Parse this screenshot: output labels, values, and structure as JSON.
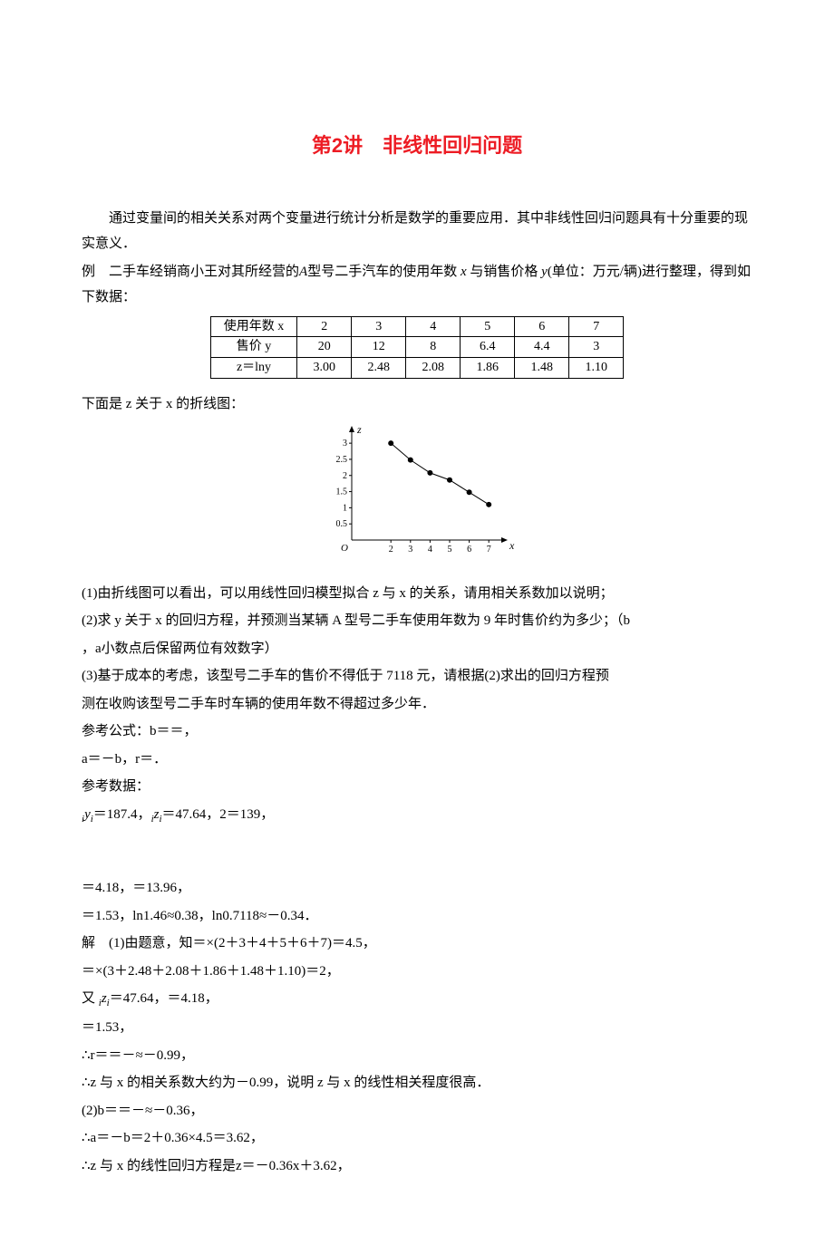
{
  "title": "第2讲　非线性回归问题",
  "intro": "通过变量间的相关关系对两个变量进行统计分析是数学的重要应用．其中非线性回归问题具有十分重要的现实意义．",
  "example_lead": "例　二手车经销商小王对其所经营的",
  "example_mid1": "型号二手汽车的使用年数",
  "example_mid2": "与销售价格",
  "example_unit": "(单位：万元/辆)进行整理，得到如下数据：",
  "table": {
    "row1_label": "使用年数 x",
    "row2_label": "售价 y",
    "row3_label": "z＝lny",
    "columns": [
      "2",
      "3",
      "4",
      "5",
      "6",
      "7"
    ],
    "y_values": [
      "20",
      "12",
      "8",
      "6.4",
      "4.4",
      "3"
    ],
    "z_values": [
      "3.00",
      "2.48",
      "2.08",
      "1.86",
      "1.48",
      "1.10"
    ]
  },
  "chart_intro": "下面是 z 关于 x 的折线图：",
  "chart": {
    "type": "line",
    "x_values": [
      2,
      3,
      4,
      5,
      6,
      7
    ],
    "z_values": [
      3.0,
      2.48,
      2.08,
      1.86,
      1.48,
      1.1
    ],
    "x_label": "x",
    "y_label": "z",
    "y_ticks": [
      0.5,
      1,
      1.5,
      2,
      2.5,
      3
    ],
    "x_ticks": [
      2,
      3,
      4,
      5,
      6,
      7
    ],
    "ylim": [
      0,
      3.2
    ],
    "xlim": [
      0,
      7.5
    ],
    "axis_color": "#000000",
    "line_color": "#000000",
    "point_color": "#000000",
    "background_color": "#ffffff",
    "tick_fontsize": 10,
    "label_fontsize": 12,
    "marker_size": 3,
    "line_width": 1
  },
  "q1": "(1)由折线图可以看出，可以用线性回归模型拟合 z 与 x 的关系，请用相关系数加以说明；",
  "q2_a": "(2)求 y 关于 x 的回归方程，并预测当某辆 A 型号二手车使用年数为 9 年时售价约为多少；（b",
  "q2_b": "，a小数点后保留两位有效数字）",
  "q3_a": "(3)基于成本的考虑，该型号二手车的售价不得低于 7118 元，请根据(2)求出的回归方程预",
  "q3_b": "测在收购该型号二手车时车辆的使用年数不得超过多少年．",
  "ref_formula_label": "参考公式：b＝＝，",
  "ref_formula2": "a＝－b，r＝．",
  "ref_data_label": "参考数据：",
  "ref_data1_a": "y",
  "ref_data1_b": "＝187.4，",
  "ref_data1_c": "z",
  "ref_data1_d": "＝47.64，2＝139，",
  "ref_data2": "＝4.18，＝13.96，",
  "ref_data3": "＝1.53，ln1.46≈0.38，ln0.7118≈－0.34．",
  "sol_label": "解　(1)由题意，知＝×(2＋3＋4＋5＋6＋7)＝4.5，",
  "sol_line2": "＝×(3＋2.48＋2.08＋1.86＋1.48＋1.10)＝2，",
  "sol_line3_a": "又 ",
  "sol_line3_b": "z",
  "sol_line3_c": "＝47.64，＝4.18，",
  "sol_line4": "＝1.53，",
  "sol_line5": "∴r＝＝－≈－0.99，",
  "sol_line6": "∴z 与 x 的相关系数大约为－0.99，说明 z 与 x 的线性相关程度很高．",
  "sol_line7": "(2)b＝＝－≈－0.36，",
  "sol_line8": "∴a＝－b＝2＋0.36×4.5＝3.62，",
  "sol_line9": "∴z 与 x 的线性回归方程是z＝－0.36x＋3.62，"
}
